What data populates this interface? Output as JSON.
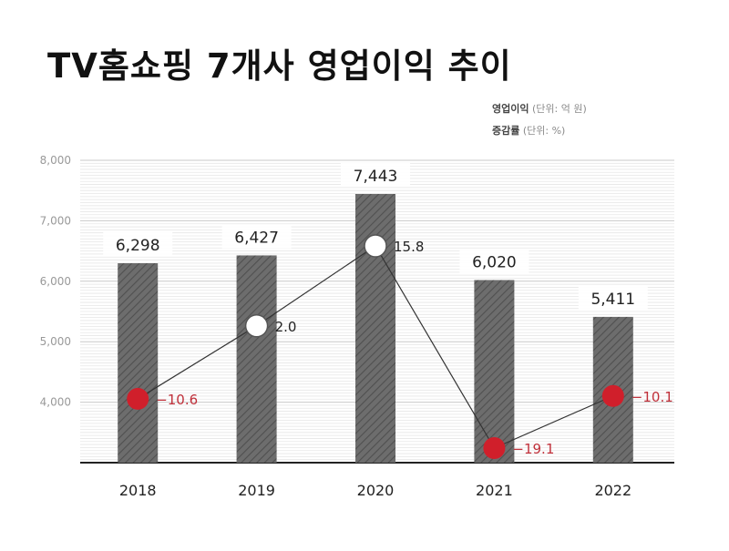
{
  "title": "TV홈쇼핑 7개사 영업이익 추이",
  "legend": {
    "items": [
      {
        "key": "영업이익",
        "unit": "(단위: 억 원)"
      },
      {
        "key": "증감률",
        "unit": "(단위: %)"
      }
    ]
  },
  "colors": {
    "bar": "#6d6d6d",
    "bar_hatch": "#4a4a4a",
    "positive_marker": "#ffffff",
    "negative_marker": "#d01f2b",
    "negative_text": "#c0303a",
    "line": "#333333"
  },
  "chart_data": {
    "type": "bar",
    "categories": [
      "2018",
      "2019",
      "2020",
      "2021",
      "2022"
    ],
    "series": [
      {
        "name": "영업이익",
        "values": [
          6298,
          6427,
          7443,
          6020,
          5411
        ],
        "labels": [
          "6,298",
          "6,427",
          "7,443",
          "6,020",
          "5,411"
        ]
      },
      {
        "name": "증감률",
        "type": "line",
        "values": [
          -10.6,
          2.0,
          15.8,
          -19.1,
          -10.1
        ],
        "labels": [
          "−10.6",
          "2.0",
          "15.8",
          "−19.1",
          "−10.1"
        ]
      }
    ],
    "yticks": [
      "8,000",
      "7,000",
      "6,000",
      "5,000",
      "4,000"
    ],
    "ylim": [
      3000,
      8000
    ],
    "grid": true
  }
}
